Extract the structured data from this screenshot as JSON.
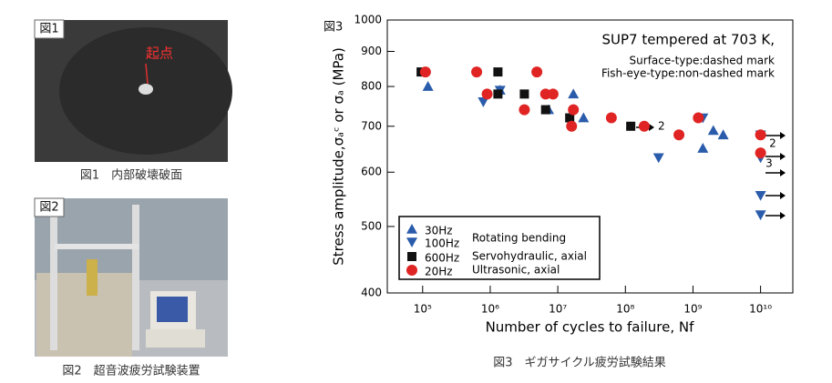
{
  "figures": [
    {
      "tag": "図1",
      "marker": "起点",
      "caption": "図1　内部破壊破面"
    },
    {
      "tag": "図2",
      "caption": "図2　超音波疲労試験装置"
    }
  ],
  "chart_data": {
    "type": "scatter",
    "tag": "図3",
    "caption": "図3　ギガサイクル疲労試験結果",
    "title": "SUP7 tempered at 703 K,",
    "subtitle": [
      "Surface-type:dashed mark",
      "Fish-eye-type:non-dashed mark"
    ],
    "x_label": "Number of cycles to failure, Nf",
    "y_label": "Stress amplitude,σₐᶜ or σₐ (MPa)",
    "log_x": true,
    "log_y": true,
    "xlim": [
      30000,
      30000000000
    ],
    "ylim": [
      400,
      1000
    ],
    "xticks": [
      {
        "value": 100000,
        "label": "10⁵"
      },
      {
        "value": 1000000,
        "label": "10⁶"
      },
      {
        "value": 10000000,
        "label": "10⁷"
      },
      {
        "value": 100000000,
        "label": "10⁸"
      },
      {
        "value": 1000000000,
        "label": "10⁹"
      },
      {
        "value": 10000000000,
        "label": "10¹⁰"
      }
    ],
    "yticks": [
      400,
      500,
      600,
      700,
      800,
      900,
      1000
    ],
    "legend_notes": [
      "Rotating bending",
      "Servohydraulic, axial",
      "Ultrasonic, axial"
    ],
    "annotations": [
      "2",
      "2",
      "3"
    ],
    "series": [
      {
        "name": "30Hz",
        "marker": "triangle-up",
        "color": "#2a5cab",
        "x": [
          120000,
          1400000,
          7300000,
          17000000,
          24000000,
          1400000000,
          2000000000,
          2800000000
        ],
        "values": [
          800,
          790,
          740,
          780,
          720,
          650,
          690,
          680
        ]
      },
      {
        "name": "100Hz",
        "marker": "triangle-down",
        "color": "#2a5cab",
        "x": [
          790000,
          1400000,
          310000000,
          1400000000,
          10000000000,
          10000000000,
          10000000000,
          10000000000
        ],
        "values": [
          760,
          790,
          630,
          720,
          680,
          630,
          555,
          520
        ]
      },
      {
        "name": "600Hz",
        "marker": "square",
        "color": "#111111",
        "x": [
          95000,
          1300000,
          1300000,
          3200000,
          6600000,
          15000000,
          120000000
        ],
        "values": [
          840,
          840,
          780,
          780,
          740,
          720,
          700
        ]
      },
      {
        "name": "20Hz",
        "marker": "circle",
        "color": "#e02424",
        "x": [
          110000,
          630000,
          4900000,
          900000,
          3200000,
          6600000,
          8500000,
          17000000,
          16000000,
          62000000,
          190000000,
          620000000,
          1200000000,
          10000000000,
          10000000000
        ],
        "values": [
          840,
          840,
          840,
          780,
          740,
          780,
          780,
          740,
          700,
          720,
          700,
          680,
          720,
          680,
          640
        ]
      }
    ]
  }
}
